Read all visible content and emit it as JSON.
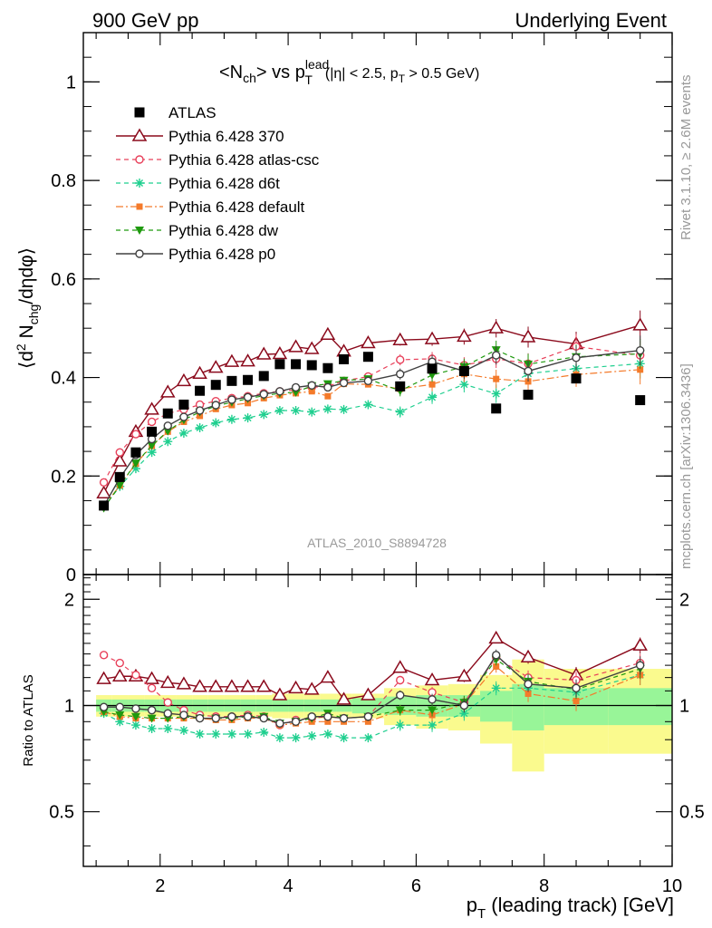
{
  "header": {
    "left": "900 GeV pp",
    "right": "Underlying Event",
    "title_main": "<N",
    "title_sub_ch": "ch",
    "title_mid": "> vs p",
    "title_sup": "lead",
    "title_sub_t": "T",
    "title_cut_a": "(|η| < 2.5, p",
    "title_cut_sub": "T",
    "title_cut_b": " > 0.5 GeV)"
  },
  "side": {
    "rivet": "Rivet 3.1.10, ≥ 2.6M events",
    "mcplots": "mcplots.cern.ch [arXiv:1306.3436]"
  },
  "analysis_label": "ATLAS_2010_S8894728",
  "colors": {
    "atlas": "#000000",
    "p370": "#8b0a1c",
    "csc": "#e8405a",
    "d6t": "#1fcf8f",
    "default": "#f47a2a",
    "dw": "#1f9a0e",
    "p0": "#404040",
    "band_green": "#98f598",
    "band_yellow": "#fafa8e"
  },
  "chart_data": [
    {
      "type": "scatter",
      "ylabel_pre": "⟨d",
      "ylabel_sup": "2",
      "ylabel_mid": " N",
      "ylabel_sub": "chg",
      "ylabel_post": "/dηdφ⟩",
      "xlim": [
        0.8,
        10.0
      ],
      "ylim": [
        0,
        1.1
      ],
      "yticks": [
        "0",
        "0.2",
        "0.4",
        "0.6",
        "0.8",
        "1"
      ],
      "legend_position": "top-left",
      "x": [
        1.12,
        1.37,
        1.62,
        1.87,
        2.12,
        2.37,
        2.62,
        2.87,
        3.12,
        3.37,
        3.62,
        3.87,
        4.12,
        4.37,
        4.62,
        4.87,
        5.25,
        5.75,
        6.25,
        6.75,
        7.25,
        7.75,
        8.5,
        9.5
      ],
      "series": [
        {
          "name": "ATLAS",
          "values": [
            0.14,
            0.198,
            0.248,
            0.29,
            0.327,
            0.345,
            0.373,
            0.385,
            0.393,
            0.395,
            0.403,
            0.427,
            0.427,
            0.425,
            0.419,
            0.437,
            0.442,
            0.382,
            0.418,
            0.413,
            0.337,
            0.365,
            0.398,
            0.354
          ]
        },
        {
          "name": "Pythia 6.428 370",
          "values": [
            0.165,
            0.23,
            0.29,
            0.335,
            0.37,
            0.393,
            0.408,
            0.42,
            0.432,
            0.433,
            0.447,
            0.448,
            0.462,
            0.458,
            0.487,
            0.453,
            0.47,
            0.476,
            0.478,
            0.483,
            0.5,
            0.482,
            0.468,
            0.506
          ]
        },
        {
          "name": "Pythia 6.428 atlas-csc",
          "values": [
            0.187,
            0.248,
            0.285,
            0.31,
            0.327,
            0.335,
            0.345,
            0.352,
            0.358,
            0.362,
            0.368,
            0.372,
            0.375,
            0.38,
            0.382,
            0.393,
            0.402,
            0.436,
            0.438,
            0.425,
            0.438,
            0.428,
            0.463,
            0.445
          ]
        },
        {
          "name": "Pythia 6.428 d6t",
          "values": [
            0.137,
            0.179,
            0.215,
            0.248,
            0.27,
            0.287,
            0.298,
            0.308,
            0.315,
            0.318,
            0.325,
            0.333,
            0.333,
            0.33,
            0.336,
            0.335,
            0.345,
            0.33,
            0.36,
            0.386,
            0.367,
            0.408,
            0.418,
            0.428
          ]
        },
        {
          "name": "Pythia 6.428 default",
          "values": [
            0.138,
            0.181,
            0.225,
            0.261,
            0.29,
            0.31,
            0.322,
            0.336,
            0.344,
            0.348,
            0.358,
            0.364,
            0.368,
            0.372,
            0.362,
            0.387,
            0.386,
            0.377,
            0.386,
            0.407,
            0.397,
            0.392,
            0.406,
            0.416
          ]
        },
        {
          "name": "Pythia 6.428 dw",
          "values": [
            0.135,
            0.181,
            0.226,
            0.262,
            0.291,
            0.314,
            0.33,
            0.342,
            0.35,
            0.357,
            0.363,
            0.368,
            0.37,
            0.383,
            0.387,
            0.394,
            0.397,
            0.373,
            0.405,
            0.422,
            0.456,
            0.427,
            0.442,
            0.448
          ]
        },
        {
          "name": "Pythia 6.428 p0",
          "values": [
            0.139,
            0.196,
            0.243,
            0.275,
            0.302,
            0.32,
            0.333,
            0.344,
            0.355,
            0.36,
            0.366,
            0.372,
            0.38,
            0.384,
            0.38,
            0.389,
            0.393,
            0.407,
            0.432,
            0.413,
            0.445,
            0.413,
            0.44,
            0.455
          ]
        }
      ]
    },
    {
      "type": "line",
      "ylabel": "Ratio to ATLAS",
      "xlabel_pre": "p",
      "xlabel_sub": "T",
      "xlabel_post": " (leading track) [GeV]",
      "xlim": [
        0.8,
        10.0
      ],
      "ylim": [
        0.35,
        2.35
      ],
      "yticks": [
        "0.5",
        "1",
        "2"
      ],
      "xticks": [
        "2",
        "4",
        "6",
        "8",
        "10"
      ],
      "reference": 1,
      "bins": [
        [
          1.0,
          1.25
        ],
        [
          1.25,
          1.5
        ],
        [
          1.5,
          1.75
        ],
        [
          1.75,
          2.0
        ],
        [
          2.0,
          2.25
        ],
        [
          2.25,
          2.5
        ],
        [
          2.5,
          2.75
        ],
        [
          2.75,
          3.0
        ],
        [
          3.0,
          3.25
        ],
        [
          3.25,
          3.5
        ],
        [
          3.5,
          3.75
        ],
        [
          3.75,
          4.0
        ],
        [
          4.0,
          4.25
        ],
        [
          4.25,
          4.5
        ],
        [
          4.5,
          4.75
        ],
        [
          4.75,
          5.0
        ],
        [
          5.0,
          5.5
        ],
        [
          5.5,
          6.0
        ],
        [
          6.0,
          6.5
        ],
        [
          6.5,
          7.0
        ],
        [
          7.0,
          7.5
        ],
        [
          7.5,
          8.0
        ],
        [
          8.0,
          9.0
        ],
        [
          9.0,
          10.0
        ]
      ],
      "band_green": [
        0.04,
        0.04,
        0.04,
        0.04,
        0.04,
        0.04,
        0.04,
        0.04,
        0.04,
        0.04,
        0.04,
        0.04,
        0.04,
        0.04,
        0.04,
        0.04,
        0.05,
        0.06,
        0.07,
        0.07,
        0.1,
        0.15,
        0.12,
        0.12
      ],
      "band_yellow": [
        0.07,
        0.07,
        0.07,
        0.07,
        0.07,
        0.07,
        0.07,
        0.07,
        0.07,
        0.07,
        0.07,
        0.08,
        0.08,
        0.08,
        0.08,
        0.08,
        0.08,
        0.12,
        0.14,
        0.15,
        0.22,
        0.35,
        0.27,
        0.27
      ],
      "series": [
        {
          "name": "Pythia 6.428 370",
          "values": [
            1.19,
            1.21,
            1.21,
            1.19,
            1.16,
            1.15,
            1.13,
            1.13,
            1.13,
            1.13,
            1.13,
            1.07,
            1.12,
            1.11,
            1.2,
            1.04,
            1.07,
            1.28,
            1.18,
            1.21,
            1.55,
            1.37,
            1.22,
            1.48
          ]
        },
        {
          "name": "Pythia 6.428 atlas-csc",
          "values": [
            1.39,
            1.32,
            1.22,
            1.12,
            1.02,
            0.97,
            0.94,
            0.93,
            0.93,
            0.94,
            0.93,
            0.88,
            0.91,
            0.92,
            0.93,
            0.92,
            0.93,
            1.18,
            1.09,
            1.02,
            1.37,
            1.2,
            1.18,
            1.32
          ]
        },
        {
          "name": "Pythia 6.428 d6t",
          "values": [
            0.95,
            0.9,
            0.88,
            0.86,
            0.86,
            0.85,
            0.83,
            0.83,
            0.83,
            0.83,
            0.84,
            0.81,
            0.81,
            0.82,
            0.83,
            0.81,
            0.81,
            0.88,
            0.88,
            0.95,
            1.12,
            1.12,
            1.09,
            1.22
          ]
        },
        {
          "name": "Pythia 6.428 default",
          "values": [
            0.96,
            0.93,
            0.92,
            0.92,
            0.92,
            0.92,
            0.92,
            0.91,
            0.91,
            0.92,
            0.92,
            0.88,
            0.89,
            0.9,
            0.9,
            0.9,
            0.9,
            0.97,
            0.94,
            1.01,
            1.29,
            1.08,
            1.03,
            1.22
          ]
        },
        {
          "name": "Pythia 6.428 dw",
          "values": [
            0.96,
            0.94,
            0.93,
            0.92,
            0.92,
            0.93,
            0.92,
            0.92,
            0.92,
            0.93,
            0.93,
            0.89,
            0.9,
            0.92,
            0.95,
            0.92,
            0.93,
            0.97,
            0.97,
            1.02,
            1.35,
            1.17,
            1.11,
            1.27
          ]
        },
        {
          "name": "Pythia 6.428 p0",
          "values": [
            0.99,
            0.99,
            0.98,
            0.97,
            0.95,
            0.94,
            0.92,
            0.92,
            0.93,
            0.93,
            0.92,
            0.89,
            0.9,
            0.93,
            0.93,
            0.92,
            0.93,
            1.07,
            1.04,
            1.0,
            1.39,
            1.15,
            1.12,
            1.3
          ]
        }
      ]
    }
  ]
}
